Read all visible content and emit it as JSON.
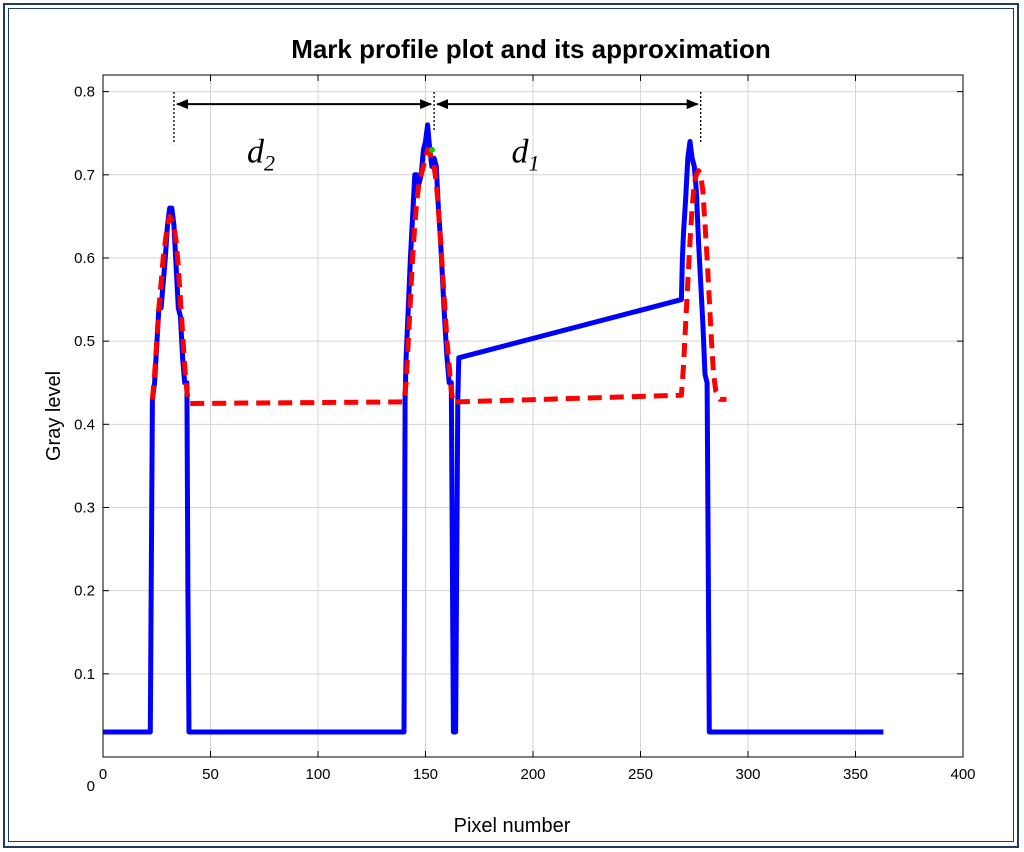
{
  "chart_data": {
    "type": "line",
    "title": "Mark profile plot and its approximation",
    "xlabel": "Pixel number",
    "ylabel": "Gray level",
    "xlim": [
      0,
      400
    ],
    "ylim": [
      0,
      0.82
    ],
    "xticks": [
      0,
      50,
      100,
      150,
      200,
      250,
      300,
      350,
      400
    ],
    "yticks": [
      0.1,
      0.2,
      0.3,
      0.4,
      0.5,
      0.6,
      0.7,
      0.8
    ],
    "y_zero_label": "0",
    "grid": true,
    "series": [
      {
        "style": "solid",
        "color": "#0000ff",
        "x": [
          0,
          22,
          23,
          24,
          26,
          27,
          29,
          30,
          31,
          32,
          33,
          34,
          35,
          36,
          37,
          38,
          39,
          39.5,
          40,
          40.5,
          140,
          140.5,
          141,
          142,
          143,
          144,
          145,
          146,
          147,
          148,
          149,
          150,
          151,
          152,
          153,
          154,
          155,
          156,
          157,
          158,
          159,
          160,
          161,
          162,
          163,
          164,
          165,
          165.5,
          269,
          269.5,
          270,
          271,
          272,
          273,
          274,
          275,
          276,
          277,
          278,
          279,
          280,
          281,
          282,
          283,
          284,
          285,
          286,
          287,
          288,
          289,
          289.5,
          290,
          363
        ],
        "y": [
          0.03,
          0.03,
          0.43,
          0.45,
          0.54,
          0.54,
          0.6,
          0.64,
          0.66,
          0.66,
          0.64,
          0.59,
          0.54,
          0.53,
          0.48,
          0.45,
          0.45,
          0.2,
          0.03,
          0.03,
          0.03,
          0.43,
          0.48,
          0.54,
          0.6,
          0.65,
          0.7,
          0.7,
          0.69,
          0.7,
          0.73,
          0.74,
          0.76,
          0.73,
          0.71,
          0.72,
          0.71,
          0.66,
          0.62,
          0.57,
          0.52,
          0.48,
          0.45,
          0.45,
          0.03,
          0.03,
          0.43,
          0.48,
          0.55,
          0.6,
          0.63,
          0.67,
          0.72,
          0.74,
          0.72,
          0.71,
          0.68,
          0.62,
          0.57,
          0.52,
          0.46,
          0.45,
          0.03,
          0.03,
          0.03,
          0.03,
          0.03,
          0.03,
          0.03,
          0.03,
          0.03,
          0.03,
          0.03
        ]
      },
      {
        "style": "dashed",
        "color": "#ff0000",
        "x": [
          23,
          24,
          25,
          26,
          27,
          28,
          29,
          30,
          31,
          32,
          33,
          34,
          35,
          36,
          37,
          38,
          39,
          40,
          140,
          141,
          142,
          143,
          144,
          145,
          146,
          147,
          148,
          149,
          150,
          151,
          152,
          153,
          154,
          155,
          156,
          157,
          158,
          159,
          160,
          161,
          162,
          163,
          164,
          165,
          269,
          270,
          271,
          272,
          273,
          274,
          275,
          276,
          277,
          278,
          279,
          280,
          281,
          282,
          283,
          284,
          285,
          286,
          287,
          288,
          289,
          290
        ],
        "y": [
          0.43,
          0.46,
          0.5,
          0.54,
          0.57,
          0.6,
          0.62,
          0.64,
          0.65,
          0.645,
          0.64,
          0.62,
          0.59,
          0.55,
          0.51,
          0.47,
          0.44,
          0.425,
          0.427,
          0.45,
          0.5,
          0.55,
          0.6,
          0.64,
          0.67,
          0.69,
          0.7,
          0.71,
          0.72,
          0.73,
          0.725,
          0.72,
          0.71,
          0.69,
          0.66,
          0.62,
          0.58,
          0.54,
          0.5,
          0.47,
          0.44,
          0.425,
          0.426,
          0.427,
          0.435,
          0.47,
          0.52,
          0.57,
          0.62,
          0.66,
          0.69,
          0.7,
          0.705,
          0.7,
          0.68,
          0.64,
          0.6,
          0.55,
          0.5,
          0.46,
          0.44,
          0.435,
          0.43,
          0.43,
          0.43,
          0.43
        ]
      }
    ],
    "peak_marker": {
      "x": 153,
      "y": 0.73,
      "color": "#00cc00"
    },
    "annotations": {
      "guide_lines_x": [
        33,
        154,
        278
      ],
      "arrow_y": 0.785,
      "d2": {
        "letter": "d",
        "sub": "2",
        "x": 67,
        "y": 0.715
      },
      "d1": {
        "letter": "d",
        "sub": "1",
        "x": 190,
        "y": 0.715
      }
    }
  }
}
